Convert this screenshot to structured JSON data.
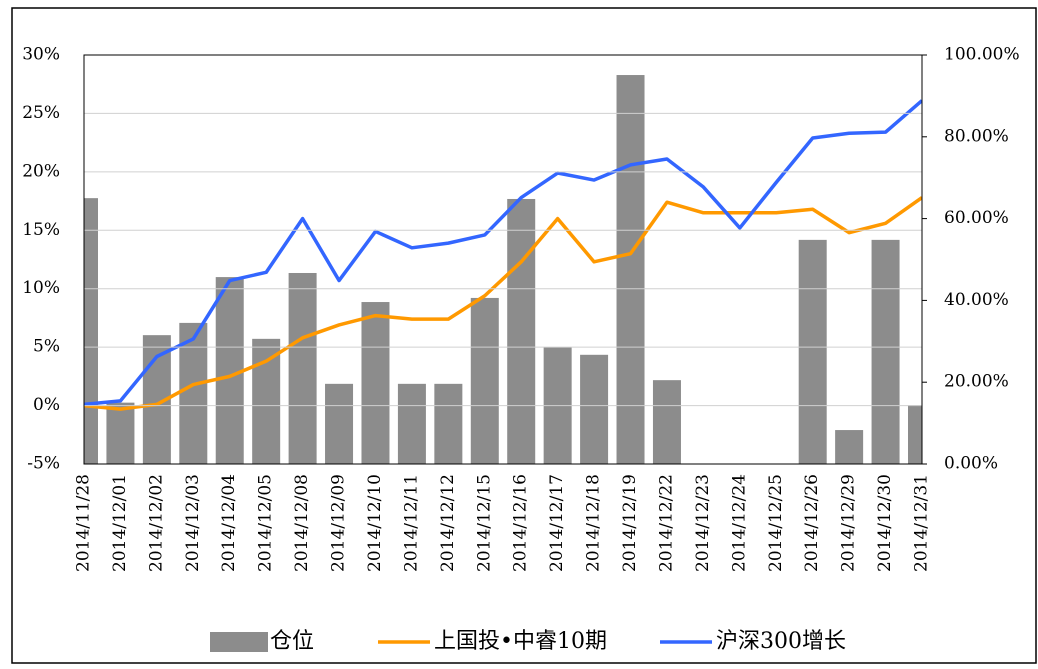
{
  "chart_data": {
    "type": "combo",
    "categories": [
      "2014/11/28",
      "2014/12/01",
      "2014/12/02",
      "2014/12/03",
      "2014/12/04",
      "2014/12/05",
      "2014/12/08",
      "2014/12/09",
      "2014/12/10",
      "2014/12/11",
      "2014/12/12",
      "2014/12/15",
      "2014/12/16",
      "2014/12/17",
      "2014/12/18",
      "2014/12/19",
      "2014/12/22",
      "2014/12/23",
      "2014/12/24",
      "2014/12/25",
      "2014/12/26",
      "2014/12/29",
      "2014/12/30",
      "2014/12/31"
    ],
    "series": [
      {
        "name": "仓位",
        "type": "bar",
        "axis": "y2",
        "color": "#8c8c8c",
        "values": [
          65,
          15,
          31.5,
          34.5,
          45.7,
          30.6,
          46.7,
          19.6,
          39.6,
          19.6,
          19.6,
          40.6,
          64.8,
          28.6,
          26.7,
          95.1,
          20.5,
          0,
          0,
          0,
          54.8,
          8.3,
          54.8,
          14.4
        ]
      },
      {
        "name": "上国投•中睿10期",
        "type": "line",
        "color": "#ff9900",
        "values": [
          0,
          -0.3,
          0.1,
          1.8,
          2.5,
          3.8,
          5.8,
          6.9,
          7.7,
          7.4,
          7.4,
          9.4,
          12.3,
          16.0,
          12.3,
          13.0,
          17.4,
          16.5,
          16.5,
          16.5,
          16.8,
          14.8,
          15.6,
          17.8
        ]
      },
      {
        "name": "沪深300增长",
        "type": "line",
        "color": "#3366ff",
        "values": [
          0.1,
          0.4,
          4.2,
          5.7,
          10.7,
          11.4,
          16.0,
          10.7,
          14.9,
          13.5,
          13.9,
          14.6,
          17.8,
          19.9,
          19.3,
          20.6,
          21.1,
          18.7,
          15.2,
          19.1,
          22.9,
          23.3,
          23.4,
          26.1
        ]
      }
    ],
    "ylim": [
      -5,
      30
    ],
    "yticks": [
      {
        "value": -5,
        "label": "-5%"
      },
      {
        "value": 0,
        "label": "0%"
      },
      {
        "value": 5,
        "label": "5%"
      },
      {
        "value": 10,
        "label": "10%"
      },
      {
        "value": 15,
        "label": "15%"
      },
      {
        "value": 20,
        "label": "20%"
      },
      {
        "value": 25,
        "label": "25%"
      },
      {
        "value": 30,
        "label": "30%"
      }
    ],
    "y2lim": [
      0,
      100
    ],
    "y2ticks": [
      {
        "value": 0,
        "label": "0.00%"
      },
      {
        "value": 20,
        "label": "20.00%"
      },
      {
        "value": 40,
        "label": "40.00%"
      },
      {
        "value": 60,
        "label": "60.00%"
      },
      {
        "value": 80,
        "label": "80.00%"
      },
      {
        "value": 100,
        "label": "100.00%"
      }
    ],
    "grid": true,
    "legend": "bottom"
  }
}
